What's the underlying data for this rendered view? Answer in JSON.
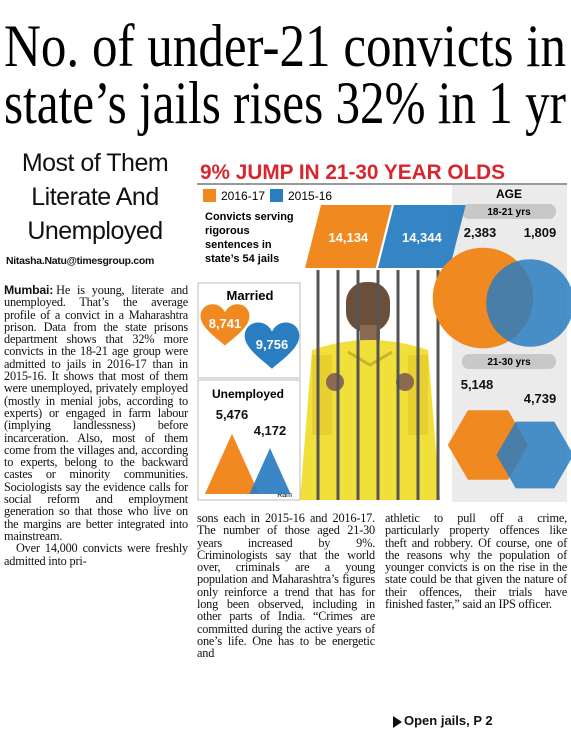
{
  "headline": [
    "No. of under-21 convicts in",
    "state’s jails rises 32% in 1 yr"
  ],
  "subheadline": "Most of Them Literate And Unemployed",
  "byline": "Nitasha.Natu@timesgroup.com",
  "article": {
    "dateline": "Mumbai:",
    "columns": [
      [
        "He is young, literate and unemployed. That’s the average profile of a convict in a Maharashtra prison. Data from the state prisons department shows that 32% more convicts in the 18-21 age group were admitted to jails in 2016-17 than in 2015-16. It shows that most of them were unemployed, privately employed (mostly in menial jobs, according to experts) or engaged in farm labour (implying landlessness) before incarceration. Also, most of them come from the villages and, according to experts, belong to the backward castes or minority communities. Sociologists say the evidence calls for social reform and employment generation so that those who live on the margins are better integrated into mainstream.",
        "Over 14,000 convicts were freshly admitted into pri-"
      ],
      [
        "sons each in 2015-16 and 2016-17. The number of those aged 21-30 years increased by 9%. Criminologists say that the world over, criminals are a young population and Maharashtra’s figures only reinforce a trend that has for long been observed, including in other parts of India. “Crimes are committed during the active years of one’s life. One has to be energetic and"
      ],
      [
        "athletic to pull off a crime, particularly property offences like theft and robbery. Of course, one of the reasons why the population of younger convicts is on the rise in the state could be that given the nature of their offences, their trials have finished faster,” said an IPS officer."
      ]
    ]
  },
  "infographic": {
    "title": "9% JUMP IN 21-30 YEAR OLDS",
    "legend": [
      "2016-17",
      "2015-16"
    ],
    "colors": [
      "#f0891f",
      "#2a7dc0"
    ],
    "convicts": {
      "label": [
        "Convicts serving",
        "rigorous",
        "sentences in",
        "state’s 54 jails"
      ],
      "values": [
        14134,
        14344
      ],
      "value_labels": [
        "14,134",
        "14,344"
      ]
    },
    "married": {
      "label": "Married",
      "values": [
        8741,
        9756
      ],
      "value_labels": [
        "8,741",
        "9,756"
      ]
    },
    "unemployed": {
      "label": "Unemployed",
      "values": [
        5476,
        4172
      ],
      "value_labels": [
        "5,476",
        "4,172"
      ]
    },
    "age": {
      "title": "AGE",
      "groups": [
        {
          "label": "18-21 yrs",
          "values": [
            2383,
            1809
          ],
          "value_labels": [
            "2,383",
            "1,809"
          ]
        },
        {
          "label": "21-30 yrs",
          "values": [
            5148,
            4739
          ],
          "value_labels": [
            "5,148",
            "4,739"
          ]
        }
      ]
    },
    "credit": "Ram"
  },
  "footer": {
    "jump": "Open jails, P 2"
  }
}
